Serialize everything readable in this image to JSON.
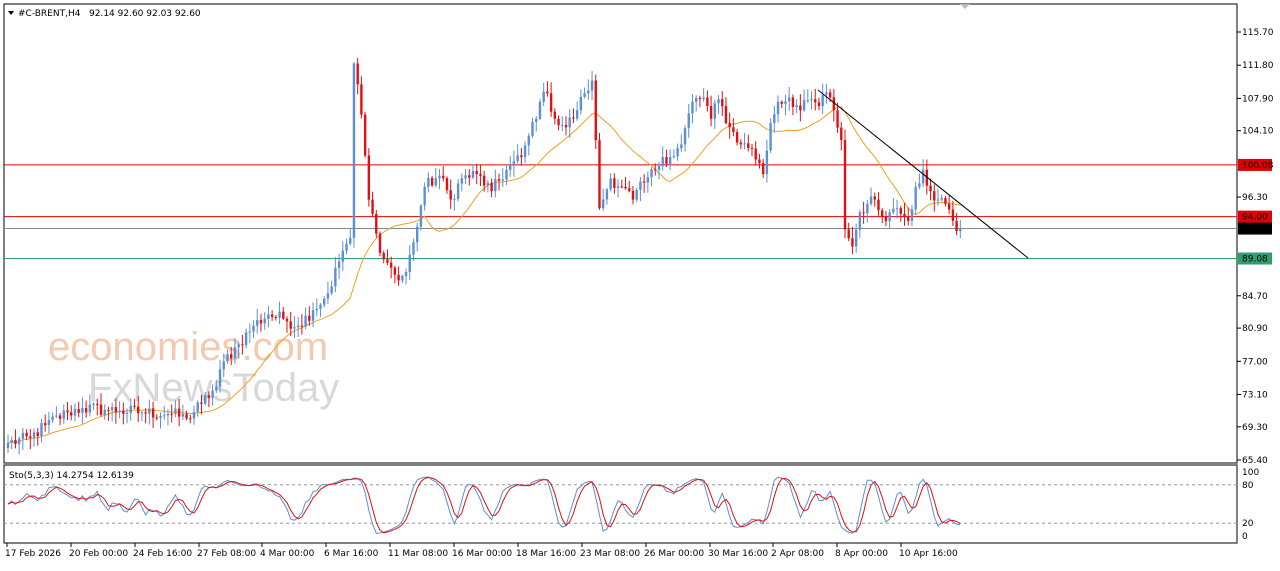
{
  "header": {
    "symbol_timeframe": "#C-BRENT,H4",
    "ohlc": "92.14 92.60 92.03 92.60"
  },
  "watermark": {
    "line1": "economies.com",
    "line2": "FxNewsToday"
  },
  "oscillator": {
    "label": "Sto(5,3,3) 14.2754 12.6139",
    "ticks": [
      "100",
      "80",
      "20",
      "0"
    ]
  },
  "chart_data": {
    "type": "candlestick",
    "y_ticks": [
      "115.70",
      "111.80",
      "107.90",
      "104.10",
      "100.08",
      "96.30",
      "94.00",
      "92.60",
      "89.08",
      "84.70",
      "80.90",
      "77.00",
      "73.10",
      "69.30",
      "65.40"
    ],
    "x_ticks": [
      "17 Feb 2026",
      "20 Feb 00:00",
      "24 Feb 16:00",
      "27 Feb 08:00",
      "4 Mar 00:00",
      "6 Mar 16:00",
      "11 Mar 08:00",
      "16 Mar 00:00",
      "18 Mar 16:00",
      "23 Mar 08:00",
      "26 Mar 00:00",
      "30 Mar 16:00",
      "2 Apr 08:00",
      "8 Apr 00:00",
      "10 Apr 16:00"
    ],
    "ylim": [
      64.3,
      118.1
    ],
    "levels": [
      {
        "value": 100.08,
        "label": "100.08",
        "color": "#e00000"
      },
      {
        "value": 94.0,
        "label": "94.00",
        "color": "#e00000"
      },
      {
        "value": 92.6,
        "label": "92.60",
        "color": "#888888"
      },
      {
        "value": 89.08,
        "label": "89.08",
        "color": "#2e9e6e"
      }
    ],
    "moving_average_color": "#f0a020",
    "bull_color": "#5b8fd6",
    "bear_color": "#e01010",
    "anchors": [
      [
        0,
        67.4
      ],
      [
        6,
        68.0
      ],
      [
        10,
        69.5
      ],
      [
        16,
        71.0
      ],
      [
        20,
        71.5
      ],
      [
        26,
        71.3
      ],
      [
        30,
        71.2
      ],
      [
        36,
        71.0
      ],
      [
        44,
        70.8
      ],
      [
        48,
        70.3
      ],
      [
        52,
        72.0
      ],
      [
        56,
        74.0
      ],
      [
        58,
        77.0
      ],
      [
        62,
        79.0
      ],
      [
        66,
        81.2
      ],
      [
        70,
        82.5
      ],
      [
        74,
        82.0
      ],
      [
        78,
        81.2
      ],
      [
        82,
        83.0
      ],
      [
        86,
        85.0
      ],
      [
        90,
        90.0
      ],
      [
        92,
        91.5
      ],
      [
        93,
        112.0
      ],
      [
        95,
        106.0
      ],
      [
        97,
        96.0
      ],
      [
        99,
        92.0
      ],
      [
        101,
        89.0
      ],
      [
        103,
        88.0
      ],
      [
        105,
        86.5
      ],
      [
        107,
        87.5
      ],
      [
        109,
        91.0
      ],
      [
        112,
        97.5
      ],
      [
        116,
        98.8
      ],
      [
        119,
        96.0
      ],
      [
        122,
        98.5
      ],
      [
        126,
        99.0
      ],
      [
        130,
        97.0
      ],
      [
        134,
        99.5
      ],
      [
        138,
        101.0
      ],
      [
        140,
        103.5
      ],
      [
        143,
        107.5
      ],
      [
        145,
        108.5
      ],
      [
        147,
        105.5
      ],
      [
        150,
        104.5
      ],
      [
        153,
        106.5
      ],
      [
        155,
        108.5
      ],
      [
        157,
        110.0
      ],
      [
        159,
        95.0
      ],
      [
        162,
        98.5
      ],
      [
        165,
        97.5
      ],
      [
        168,
        96.0
      ],
      [
        171,
        98.0
      ],
      [
        174,
        99.5
      ],
      [
        176,
        101.0
      ],
      [
        178,
        101.0
      ],
      [
        181,
        102.5
      ],
      [
        184,
        107.5
      ],
      [
        187,
        108.0
      ],
      [
        189,
        105.5
      ],
      [
        191,
        107.8
      ],
      [
        194,
        104.5
      ],
      [
        197,
        102.5
      ],
      [
        200,
        102.0
      ],
      [
        203,
        99.0
      ],
      [
        205,
        105.0
      ],
      [
        207,
        107.5
      ],
      [
        210,
        108.0
      ],
      [
        213,
        106.5
      ],
      [
        216,
        107.8
      ],
      [
        218,
        107.0
      ],
      [
        220,
        108.6
      ],
      [
        222,
        106.5
      ],
      [
        224,
        103.0
      ],
      [
        225,
        92.5
      ],
      [
        227,
        90.5
      ],
      [
        229,
        94.5
      ],
      [
        231,
        95.5
      ],
      [
        233,
        96.0
      ],
      [
        235,
        94.0
      ],
      [
        237,
        94.5
      ],
      [
        239,
        95.0
      ],
      [
        241,
        94.0
      ],
      [
        242,
        93.5
      ],
      [
        244,
        97.5
      ],
      [
        246,
        99.5
      ],
      [
        248,
        97.0
      ],
      [
        250,
        96.0
      ],
      [
        252,
        95.5
      ],
      [
        254,
        93.5
      ],
      [
        255,
        92.3
      ],
      [
        256,
        92.6
      ]
    ],
    "oscillator_range": [
      0,
      100
    ],
    "oscillator_levels": [
      80,
      20
    ]
  }
}
